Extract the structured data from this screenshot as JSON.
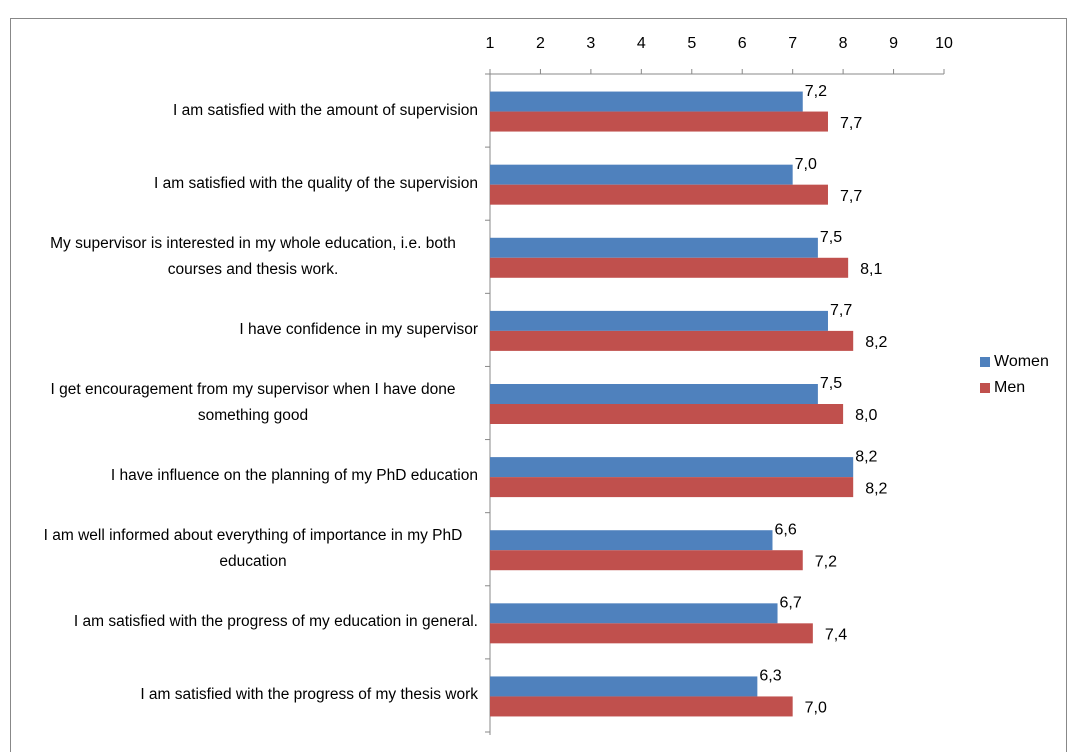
{
  "chart_data": {
    "type": "bar",
    "orientation": "horizontal",
    "categories": [
      "I am satisfied with the amount of supervision",
      "I am satisfied with the quality of the supervision",
      "My supervisor is interested in my whole education, i.e. both courses and thesis work.",
      "I have confidence in my supervisor",
      "I get encouragement from my supervisor when I have done something good",
      "I have influence on the planning of my PhD education",
      "I am well informed about everything of importance in my PhD education",
      "I am satisfied with the progress of my education in general.",
      "I am satisfied with the progress of my thesis work"
    ],
    "series": [
      {
        "name": "Women",
        "color": "#4f81bd",
        "values": [
          7.2,
          7.0,
          7.5,
          7.7,
          7.5,
          8.2,
          6.6,
          6.7,
          6.3
        ],
        "value_labels": [
          "7,2",
          "7,0",
          "7,5",
          "7,7",
          "7,5",
          "8,2",
          "6,6",
          "6,7",
          "6,3"
        ]
      },
      {
        "name": "Men",
        "color": "#c0504d",
        "values": [
          7.7,
          7.7,
          8.1,
          8.2,
          8.0,
          8.2,
          7.2,
          7.4,
          7.0
        ],
        "value_labels": [
          "7,7",
          "7,7",
          "8,1",
          "8,2",
          "8,0",
          "8,2",
          "7,2",
          "7,4",
          "7,0"
        ]
      }
    ],
    "xlim": [
      1,
      10
    ],
    "xticks": [
      1,
      2,
      3,
      4,
      5,
      6,
      7,
      8,
      9,
      10
    ],
    "legend": "right"
  }
}
